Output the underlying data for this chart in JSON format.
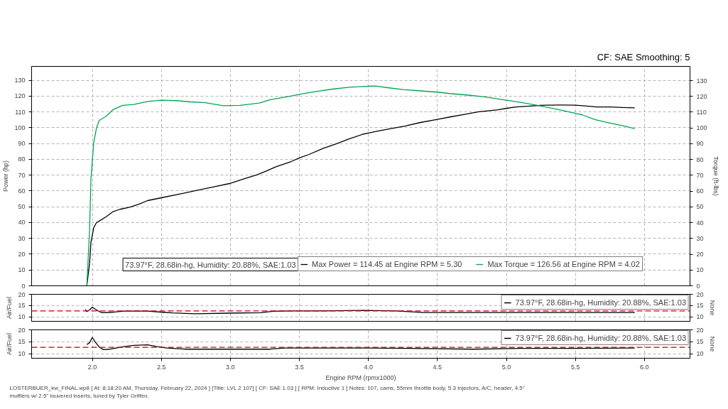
{
  "chart_data": [
    {
      "type": "line",
      "subtitle": "CF: SAE Smoothing: 5",
      "ylabel": "Power (hp)",
      "y2label": "Torque (ft-lbs)",
      "xlim": [
        1.56,
        6.33
      ],
      "xticks": [
        2,
        2.5,
        3,
        3.5,
        4,
        4.5,
        5,
        5.5,
        6
      ],
      "ylim": [
        0,
        138.8
      ],
      "yticks": [
        0,
        10,
        20,
        30,
        40,
        50,
        60,
        70,
        80,
        90,
        100,
        110,
        120,
        130
      ],
      "y2lim": [
        0,
        139
      ],
      "y2ticks": [
        0,
        10,
        20,
        30,
        40,
        50,
        60,
        70,
        80,
        90,
        100,
        110,
        120,
        130
      ],
      "tick_labels": "y",
      "grid": true,
      "legend": "bottom",
      "legend_title": "73.97°F, 28.68in-hg, Humidity: 20.88%, SAE:1.03",
      "series": [
        {
          "name": "Max Power = 114.45 at Engine RPM = 5.30",
          "color": "#000000",
          "x": [
            1.96,
            1.98,
            1.99,
            2.01,
            2.03,
            2.06,
            2.1,
            2.15,
            2.2,
            2.27,
            2.34,
            2.4,
            2.5,
            2.63,
            2.75,
            2.88,
            3.0,
            3.09,
            3.19,
            3.26,
            3.33,
            3.44,
            3.5,
            3.57,
            3.67,
            3.77,
            3.86,
            3.96,
            4.0,
            4.08,
            4.17,
            4.27,
            4.37,
            4.5,
            4.59,
            4.71,
            4.8,
            4.94,
            5.0,
            5.07,
            5.17,
            5.28,
            5.4,
            5.5,
            5.57,
            5.65,
            5.75,
            5.84,
            5.93
          ],
          "values": [
            0,
            14.2,
            27.7,
            36.7,
            40.0,
            41.5,
            43.7,
            46.9,
            48.4,
            49.7,
            51.7,
            53.9,
            55.7,
            58.0,
            60.2,
            62.6,
            64.8,
            67.4,
            70.1,
            72.6,
            75.3,
            78.6,
            80.9,
            83.1,
            86.9,
            89.9,
            92.9,
            95.9,
            96.6,
            98.1,
            99.6,
            101.1,
            103.2,
            105.3,
            106.8,
            108.6,
            110.1,
            111.3,
            112.3,
            113.1,
            113.7,
            114.3,
            114.4,
            114.3,
            113.8,
            113.1,
            113.1,
            112.8,
            112.6
          ]
        },
        {
          "name": "Max Torque = 126.56 at Engine RPM = 4.02",
          "color": "#00a650",
          "axis": "y2",
          "x": [
            1.96,
            1.98,
            1.99,
            2.01,
            2.03,
            2.05,
            2.1,
            2.15,
            2.22,
            2.3,
            2.4,
            2.5,
            2.61,
            2.71,
            2.81,
            2.95,
            3.07,
            3.21,
            3.29,
            3.43,
            3.5,
            3.62,
            3.74,
            3.86,
            4.0,
            4.05,
            4.15,
            4.25,
            4.36,
            4.5,
            4.59,
            4.71,
            4.83,
            5.0,
            5.11,
            5.24,
            5.36,
            5.5,
            5.55,
            5.64,
            5.74,
            5.84,
            5.93
          ],
          "values": [
            0,
            35.2,
            68.1,
            90.6,
            99.9,
            104.8,
            107.4,
            111.6,
            114.3,
            114.9,
            116.8,
            117.6,
            117.3,
            116.5,
            116.1,
            114.1,
            114.3,
            115.8,
            117.9,
            120.1,
            121.3,
            123.1,
            124.6,
            125.8,
            126.4,
            126.6,
            125.4,
            124.3,
            123.6,
            122.7,
            121.8,
            120.9,
            119.8,
            117.6,
            116.1,
            114.1,
            112.0,
            109.3,
            108.3,
            105.3,
            103.3,
            101.5,
            99.6
          ]
        }
      ]
    },
    {
      "type": "line",
      "ylabel": "Air/Fuel",
      "y2label": "None",
      "xlim": [
        1.56,
        6.33
      ],
      "xticks": [
        2,
        2.5,
        3,
        3.5,
        4,
        4.5,
        5,
        5.5,
        6
      ],
      "ylim": [
        8.1,
        20
      ],
      "yticks": [
        10,
        15,
        20
      ],
      "y2lim": [
        8.1,
        20
      ],
      "y2ticks": [
        10,
        15,
        20
      ],
      "tick_labels": "y",
      "grid": true,
      "legend": "top right",
      "ref_lines": [
        {
          "axis": "y",
          "value": 12.7,
          "color": "#c00000",
          "line_style": "dashed"
        }
      ],
      "series": [
        {
          "name": "73.97°F, 28.68in-hg, Humidity: 20.88%, SAE:1.03",
          "color": "#000000",
          "x": [
            1.95,
            1.96,
            1.98,
            2.0,
            2.02,
            2.05,
            2.07,
            2.15,
            2.23,
            2.4,
            2.51,
            2.58,
            2.75,
            2.99,
            3.22,
            3.31,
            3.45,
            3.65,
            3.98,
            4.2,
            4.4,
            4.8,
            5.2,
            5.6,
            5.93
          ],
          "values": [
            13.3,
            12.4,
            13.1,
            14.3,
            13.5,
            12.4,
            11.9,
            12.1,
            12.6,
            12.6,
            12.1,
            11.8,
            11.4,
            11.7,
            11.9,
            12.5,
            12.7,
            12.7,
            12.9,
            12.7,
            12.0,
            12.0,
            12.0,
            12.0,
            12.0
          ]
        }
      ]
    },
    {
      "type": "line",
      "ylabel": "Air/Fuel",
      "y2label": "None",
      "xlabel": "Engine RPM (rpmx1000)",
      "xlim": [
        1.56,
        6.33
      ],
      "xticks": [
        {
          "value": 2,
          "label": "2.0"
        },
        {
          "value": 2.5,
          "label": "2.5"
        },
        {
          "value": 3,
          "label": "3.0"
        },
        {
          "value": 3.5,
          "label": "3.5"
        },
        {
          "value": 4,
          "label": "4.0"
        },
        {
          "value": 4.5,
          "label": "4.5"
        },
        {
          "value": 5,
          "label": "5.0"
        },
        {
          "value": 5.5,
          "label": "5.5"
        },
        {
          "value": 6,
          "label": "6.0"
        }
      ],
      "ylim": [
        8.1,
        20
      ],
      "yticks": [
        10,
        15,
        20
      ],
      "y2lim": [
        8.1,
        20
      ],
      "y2ticks": [
        10,
        15,
        20
      ],
      "grid": true,
      "legend": "top right",
      "ref_lines": [
        {
          "axis": "y",
          "value": 12.7,
          "color": "#c00000",
          "line_style": "dashed"
        }
      ],
      "annotations": [
        "LOSTERBUER_kw_FINAL.wp8 [ At: 8:18:20 AM, Thursday, February 22, 2024 ] [Title: LVL 2 107] [ CF: SAE 1.03 ] [ RPM: Inductive 1 ] Notes: 107, cams, 55mm throttle body, 5.3 injectors, A/C, header, 4.5\" mufflers w/ 2.5\" louvered inserts, tuned by Tyler Griffen."
      ],
      "series": [
        {
          "name": "73.97°F, 28.68in-hg, Humidity: 20.88%, SAE:1.03",
          "color": "#000000",
          "x": [
            1.96,
            1.98,
            2.0,
            2.02,
            2.05,
            2.08,
            2.13,
            2.23,
            2.3,
            2.4,
            2.47,
            2.54,
            2.68,
            3.05,
            3.29,
            3.39,
            3.65,
            3.98,
            4.3,
            4.76,
            5.1,
            5.5,
            5.93
          ],
          "values": [
            13.8,
            14.6,
            16.8,
            15.0,
            12.8,
            11.7,
            11.9,
            13.0,
            13.5,
            13.7,
            13.0,
            12.4,
            11.9,
            11.9,
            11.9,
            12.4,
            12.4,
            12.4,
            12.2,
            11.9,
            12.2,
            12.2,
            12.4
          ]
        }
      ]
    }
  ]
}
